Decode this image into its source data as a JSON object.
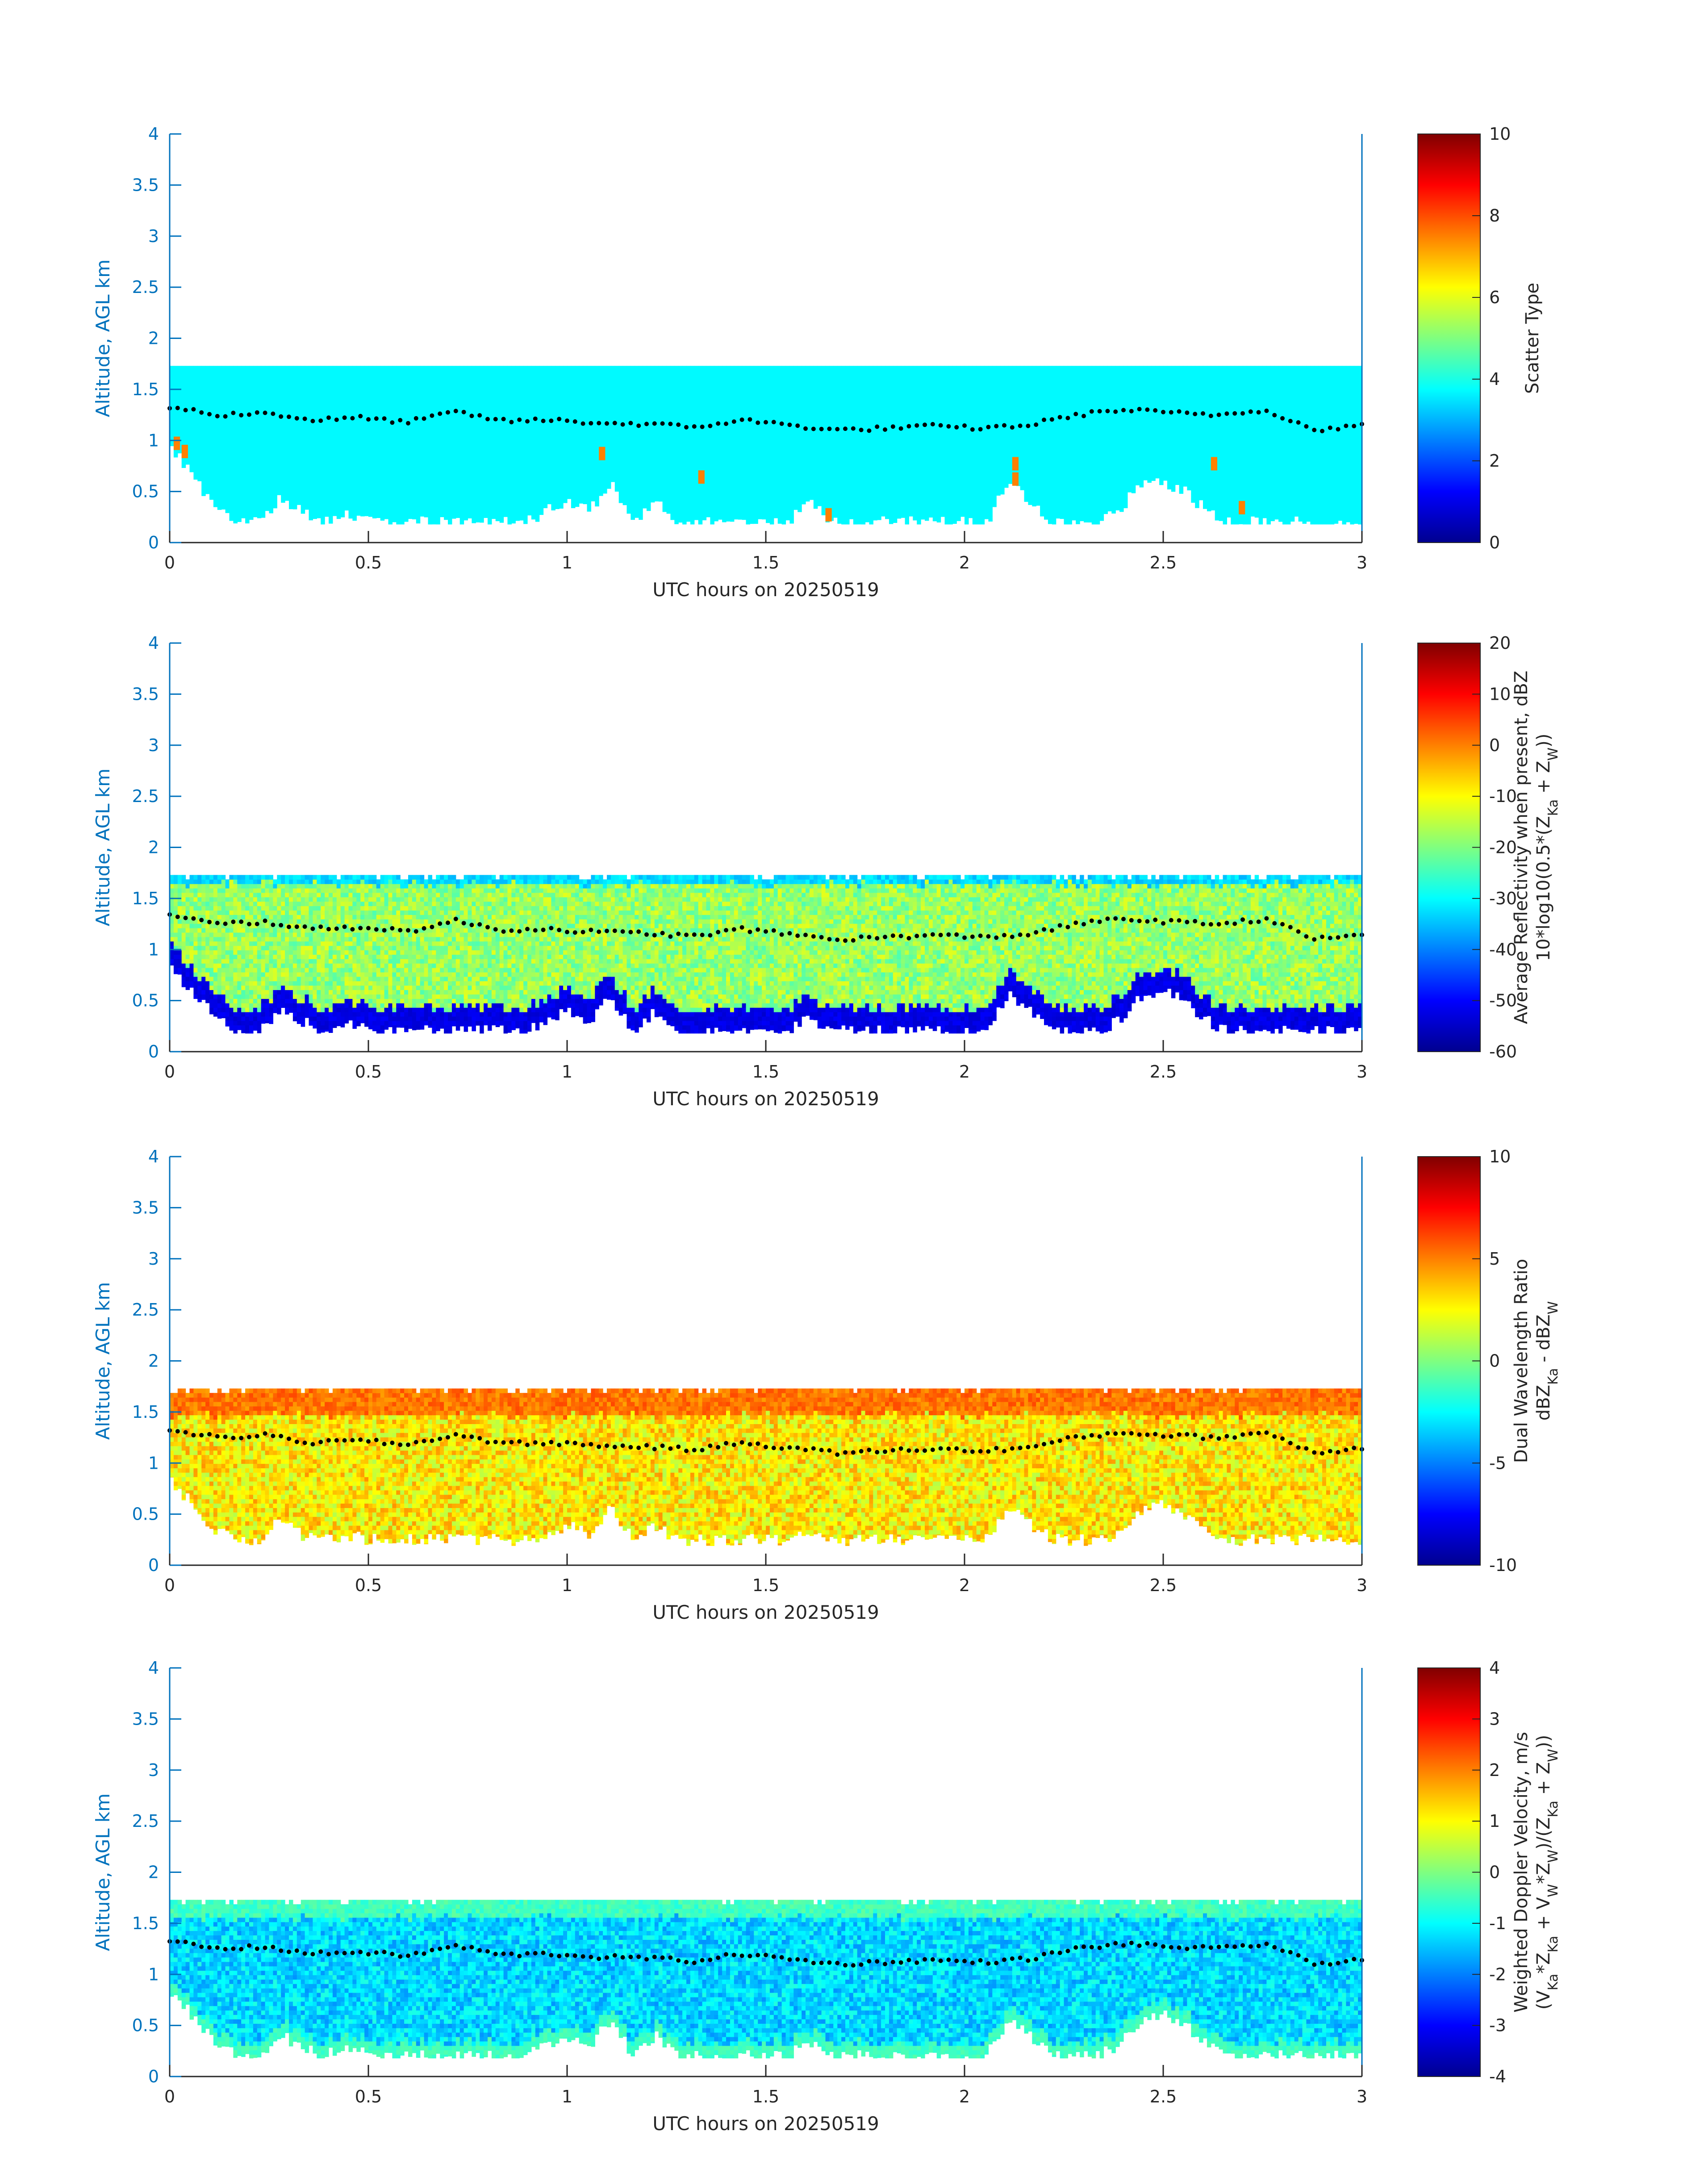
{
  "chart_data": [
    {
      "type": "heatmap",
      "panel": "scatter-type",
      "xlabel": "UTC hours on 20250519",
      "ylabel": "Altitude, AGL km",
      "xlim": [
        0,
        3
      ],
      "ylim": [
        0,
        4
      ],
      "xticks": [
        "0",
        "0.5",
        "1",
        "1.5",
        "2",
        "2.5",
        "3"
      ],
      "yticks": [
        "0",
        "0.5",
        "1",
        "1.5",
        "2",
        "2.5",
        "3",
        "3.5",
        "4"
      ],
      "colorbar": {
        "label_lines": [
          "Scatter Type"
        ],
        "range": [
          0,
          10
        ],
        "ticks": [
          "0",
          "2",
          "4",
          "6",
          "8",
          "10"
        ]
      },
      "field": {
        "colormap": "jet",
        "base_value": 3.7,
        "variability": 0,
        "top_value": 3.7,
        "top_layer_km": 0,
        "gaps": false,
        "cloud_top_km": 1.73,
        "cloud_base_km": [
          0.95,
          0.7,
          0.35,
          0.2,
          0.2,
          0.45,
          0.3,
          0.2,
          0.3,
          0.2,
          0.2,
          0.2,
          0.2,
          0.2,
          0.2,
          0.2,
          0.2,
          0.3,
          0.4,
          0.3,
          0.6,
          0.2,
          0.4,
          0.2,
          0.2,
          0.2,
          0.2,
          0.2,
          0.2,
          0.4,
          0.2,
          0.2,
          0.2,
          0.2,
          0.2,
          0.2,
          0.2,
          0.2,
          0.6,
          0.4,
          0.2,
          0.2,
          0.2,
          0.3,
          0.6,
          0.6,
          0.5,
          0.3,
          0.2,
          0.2,
          0.2,
          0.2,
          0.2,
          0.2,
          0.2
        ],
        "specks": [
          {
            "x": 0.01,
            "y": 0.95,
            "v": 7.5
          },
          {
            "x": 0.03,
            "y": 0.87,
            "v": 7.5
          },
          {
            "x": 1.08,
            "y": 0.85,
            "v": 7.5
          },
          {
            "x": 1.33,
            "y": 0.62,
            "v": 7.5
          },
          {
            "x": 1.65,
            "y": 0.25,
            "v": 7.5
          },
          {
            "x": 2.12,
            "y": 0.75,
            "v": 7.5
          },
          {
            "x": 2.12,
            "y": 0.6,
            "v": 7.5
          },
          {
            "x": 2.62,
            "y": 0.75,
            "v": 7.5
          },
          {
            "x": 2.69,
            "y": 0.32,
            "v": 7.5
          }
        ]
      }
    },
    {
      "type": "heatmap",
      "panel": "average-reflectivity",
      "xlabel": "UTC hours on 20250519",
      "ylabel": "Altitude, AGL km",
      "xlim": [
        0,
        3
      ],
      "ylim": [
        0,
        4
      ],
      "xticks": [
        "0",
        "0.5",
        "1",
        "1.5",
        "2",
        "2.5",
        "3"
      ],
      "yticks": [
        "0",
        "0.5",
        "1",
        "1.5",
        "2",
        "2.5",
        "3",
        "3.5",
        "4"
      ],
      "colorbar": {
        "label_lines": [
          "Average Reflectivity when present, dBZ",
          "10*log10(0.5*(Z_Ka + Z_W))"
        ],
        "range": [
          -60,
          20
        ],
        "ticks": [
          "-60",
          "-50",
          "-40",
          "-30",
          "-20",
          "-10",
          "0",
          "10",
          "20"
        ]
      },
      "field": {
        "colormap": "jet",
        "base_value": -18,
        "variability": 6,
        "top_value": -33,
        "top_layer_km": 0.08,
        "bottom_value": -52,
        "bottom_layer_km": 0.2,
        "gaps": true,
        "cloud_top_km": 1.73,
        "cloud_base_km": [
          0.85,
          0.6,
          0.35,
          0.2,
          0.2,
          0.4,
          0.3,
          0.2,
          0.3,
          0.2,
          0.2,
          0.2,
          0.2,
          0.2,
          0.2,
          0.2,
          0.2,
          0.3,
          0.4,
          0.3,
          0.55,
          0.2,
          0.4,
          0.2,
          0.2,
          0.2,
          0.2,
          0.2,
          0.2,
          0.35,
          0.2,
          0.2,
          0.2,
          0.2,
          0.2,
          0.2,
          0.2,
          0.2,
          0.55,
          0.4,
          0.2,
          0.2,
          0.2,
          0.3,
          0.55,
          0.6,
          0.5,
          0.3,
          0.2,
          0.2,
          0.2,
          0.2,
          0.2,
          0.2,
          0.2
        ]
      }
    },
    {
      "type": "heatmap",
      "panel": "dual-wavelength-ratio",
      "xlabel": "UTC hours on 20250519",
      "ylabel": "Altitude, AGL km",
      "xlim": [
        0,
        3
      ],
      "ylim": [
        0,
        4
      ],
      "xticks": [
        "0",
        "0.5",
        "1",
        "1.5",
        "2",
        "2.5",
        "3"
      ],
      "yticks": [
        "0",
        "0.5",
        "1",
        "1.5",
        "2",
        "2.5",
        "3",
        "3.5",
        "4"
      ],
      "colorbar": {
        "label_lines": [
          "Dual Wavelength Ratio",
          "dBZ_Ka - dBZ_W"
        ],
        "range": [
          -10,
          10
        ],
        "ticks": [
          "-10",
          "-5",
          "0",
          "5",
          "10"
        ]
      },
      "field": {
        "colormap": "jet",
        "base_value": 2.8,
        "variability": 1.8,
        "top_value": 5.2,
        "top_layer_km": 0.22,
        "gaps": true,
        "cloud_top_km": 1.73,
        "cloud_base_km": [
          0.85,
          0.6,
          0.35,
          0.25,
          0.25,
          0.45,
          0.3,
          0.25,
          0.3,
          0.25,
          0.25,
          0.25,
          0.25,
          0.25,
          0.25,
          0.25,
          0.25,
          0.3,
          0.4,
          0.3,
          0.55,
          0.25,
          0.4,
          0.25,
          0.25,
          0.25,
          0.25,
          0.25,
          0.25,
          0.35,
          0.25,
          0.25,
          0.25,
          0.25,
          0.25,
          0.25,
          0.25,
          0.25,
          0.55,
          0.4,
          0.25,
          0.25,
          0.25,
          0.3,
          0.55,
          0.6,
          0.5,
          0.3,
          0.25,
          0.25,
          0.25,
          0.25,
          0.25,
          0.25,
          0.25
        ]
      }
    },
    {
      "type": "heatmap",
      "panel": "weighted-doppler-velocity",
      "xlabel": "UTC hours on 20250519",
      "ylabel": "Altitude, AGL km",
      "xlim": [
        0,
        3
      ],
      "ylim": [
        0,
        4
      ],
      "xticks": [
        "0",
        "0.5",
        "1",
        "1.5",
        "2",
        "2.5",
        "3"
      ],
      "yticks": [
        "0",
        "0.5",
        "1",
        "1.5",
        "2",
        "2.5",
        "3",
        "3.5",
        "4"
      ],
      "colorbar": {
        "label_lines": [
          "Weighted Doppler Velocity, m/s",
          "(V_Ka*Z_Ka + V_W*Z_W)/(Z_Ka + Z_W))"
        ],
        "range": [
          -4,
          4
        ],
        "ticks": [
          "-4",
          "-3",
          "-2",
          "-1",
          "0",
          "1",
          "2",
          "3",
          "4"
        ]
      },
      "field": {
        "colormap": "jet",
        "base_value": -1.3,
        "variability": 0.55,
        "top_value": -0.5,
        "top_layer_km": 0.15,
        "bottom_value": -0.5,
        "bottom_layer_km": 0.1,
        "gaps": true,
        "cloud_top_km": 1.73,
        "cloud_base_km": [
          0.85,
          0.6,
          0.35,
          0.2,
          0.2,
          0.4,
          0.3,
          0.2,
          0.3,
          0.2,
          0.2,
          0.2,
          0.2,
          0.2,
          0.2,
          0.2,
          0.2,
          0.3,
          0.4,
          0.3,
          0.55,
          0.2,
          0.4,
          0.2,
          0.2,
          0.2,
          0.2,
          0.2,
          0.2,
          0.35,
          0.2,
          0.2,
          0.2,
          0.2,
          0.2,
          0.2,
          0.2,
          0.2,
          0.55,
          0.4,
          0.2,
          0.2,
          0.2,
          0.3,
          0.55,
          0.6,
          0.5,
          0.3,
          0.2,
          0.2,
          0.2,
          0.2,
          0.2,
          0.2,
          0.2
        ]
      }
    }
  ],
  "overlay": {
    "color": "#000000",
    "line_x": [
      0,
      0.2,
      0.4,
      0.6,
      0.8,
      1.0,
      1.1,
      1.2,
      1.3,
      1.4,
      1.5,
      1.6,
      1.7,
      1.8,
      1.9,
      2.0,
      2.1,
      2.2,
      2.3,
      2.4,
      2.5,
      2.6,
      2.7,
      2.8,
      2.9,
      3.0
    ],
    "line_y": [
      1.33,
      1.25,
      1.27,
      1.2,
      1.22,
      1.18,
      1.28,
      1.19,
      1.2,
      1.17,
      1.16,
      1.13,
      1.2,
      1.15,
      1.1,
      1.12,
      1.14,
      1.12,
      1.15,
      1.25,
      1.3,
      1.27,
      1.25,
      1.3,
      1.1,
      1.15
    ]
  }
}
